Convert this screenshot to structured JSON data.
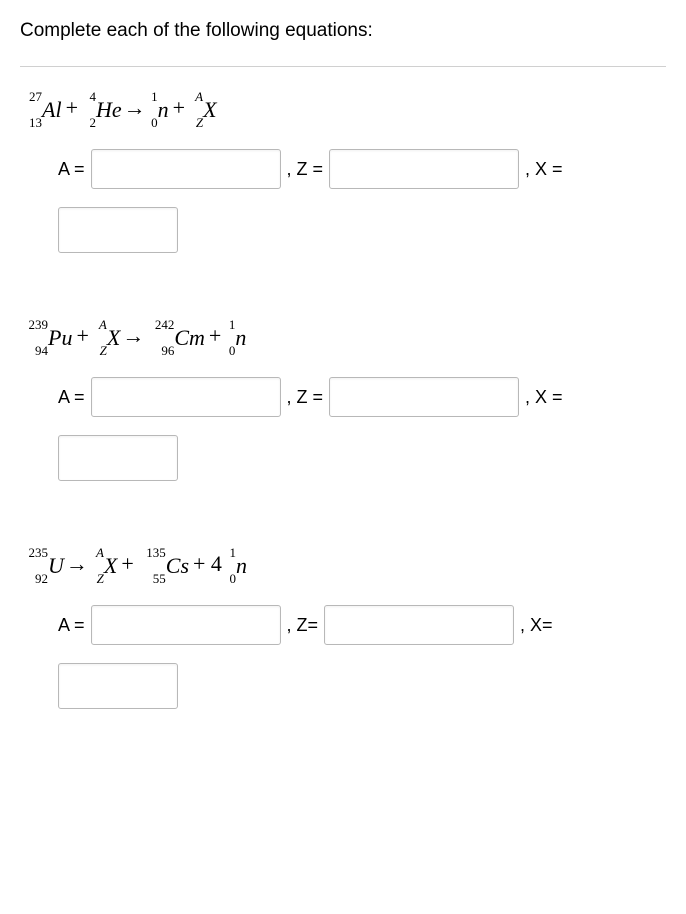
{
  "heading": "Complete each of the following equations:",
  "labels": {
    "A": "A =",
    "Z": ", Z =",
    "Zb": ", Z=",
    "X": ", X =",
    "Xb": ", X="
  },
  "problems": [
    {
      "id": "p1",
      "terms": [
        {
          "sup": "27",
          "sub": "13",
          "sym": "Al",
          "sw": 22
        },
        {
          "op": "+"
        },
        {
          "sup": "4",
          "sub": "2",
          "sym": "He",
          "sw": 14
        },
        {
          "arrow": "→"
        },
        {
          "sup": "1",
          "sub": "0",
          "sym": "n",
          "sw": 10
        },
        {
          "op": "+"
        },
        {
          "sup": "A",
          "sub": "Z",
          "sym": "X",
          "sw": 14,
          "italicscripts": true
        }
      ],
      "labelZ": ", Z =",
      "labelX": ", X ="
    },
    {
      "id": "p2",
      "terms": [
        {
          "sup": "239",
          "sub": "94",
          "sym": "Pu",
          "sw": 28
        },
        {
          "op": "+"
        },
        {
          "sup": "A",
          "sub": "Z",
          "sym": "X",
          "sw": 14,
          "italicscripts": true
        },
        {
          "arrow": "→"
        },
        {
          "sup": "242",
          "sub": "96",
          "sym": "Cm",
          "sw": 28
        },
        {
          "op": "+"
        },
        {
          "sup": "1",
          "sub": "0",
          "sym": "n",
          "sw": 10
        }
      ],
      "labelZ": ", Z =",
      "labelX": ", X ="
    },
    {
      "id": "p3",
      "terms": [
        {
          "sup": "235",
          "sub": "92",
          "sym": "U",
          "sw": 28
        },
        {
          "arrow": "→"
        },
        {
          "sup": "A",
          "sub": "Z",
          "sym": "X",
          "sw": 14,
          "italicscripts": true
        },
        {
          "op": "+"
        },
        {
          "sup": "135",
          "sub": "55",
          "sym": "Cs",
          "sw": 28
        },
        {
          "op": "+ 4"
        },
        {
          "sup": "1",
          "sub": "0",
          "sym": "n",
          "sw": 10
        }
      ],
      "labelZ": ", Z=",
      "labelX": ", X="
    }
  ]
}
